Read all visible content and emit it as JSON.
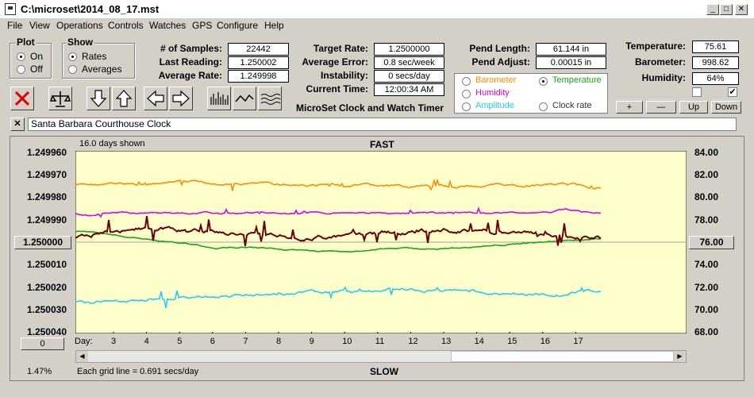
{
  "window": {
    "title": "C:\\microset\\2014_08_17.mst"
  },
  "menu": [
    "File",
    "View",
    "Operations",
    "Controls",
    "Watches",
    "GPS",
    "Configure",
    "Help"
  ],
  "plot_group": {
    "label": "Plot",
    "options": [
      "On",
      "Off"
    ],
    "selected": "On"
  },
  "show_group": {
    "label": "Show",
    "options": [
      "Rates",
      "Averages"
    ],
    "selected": "Rates"
  },
  "stats": {
    "samples_label": "# of Samples:",
    "samples": "22442",
    "last_label": "Last Reading:",
    "last": "1.250002",
    "avg_rate_label": "Average Rate:",
    "avg_rate": "1.249998",
    "target_label": "Target Rate:",
    "target": "1.2500000",
    "avg_err_label": "Average Error:",
    "avg_err": "0.8 sec/week",
    "instab_label": "Instability:",
    "instab": "0 secs/day",
    "time_label": "Current Time:",
    "time": "12:00:34 AM",
    "pend_len_label": "Pend Length:",
    "pend_len": "61.144 in",
    "pend_adj_label": "Pend Adjust:",
    "pend_adj": "0.00015 in",
    "temp_label": "Temperature:",
    "temp": "75.61",
    "baro_label": "Barometer:",
    "baro": "998.62",
    "hum_label": "Humidity:",
    "hum": "64%"
  },
  "app_caption": "MicroSet Clock and Watch Timer",
  "channel_options": [
    "Barometer",
    "Temperature",
    "Humidity",
    "Clock rate",
    "Amplitude"
  ],
  "channel_selected": "Temperature",
  "channel_checks": {
    "left": false,
    "right": true
  },
  "channel_buttons": [
    "+",
    "—",
    "Up",
    "Down"
  ],
  "watch_name": "Santa Barbara Courthouse Clock",
  "plot": {
    "days_shown": "16.0 days shown",
    "fast": "FAST",
    "slow": "SLOW",
    "left_ticks": [
      "1.249960",
      "1.249970",
      "1.249980",
      "1.249990",
      "1.250000",
      "1.250010",
      "1.250020",
      "1.250030",
      "1.250040"
    ],
    "right_ticks": [
      "84.00",
      "82.00",
      "80.00",
      "78.00",
      "76.00",
      "74.00",
      "72.00",
      "70.00",
      "68.00"
    ],
    "left_center_btn": "1.250000",
    "right_center_btn": "76.00",
    "zero_btn": "0",
    "day_label": "Day:",
    "days": [
      "3",
      "4",
      "5",
      "6",
      "7",
      "8",
      "9",
      "10",
      "11",
      "12",
      "13",
      "14",
      "15",
      "16",
      "17"
    ],
    "percent": "1.47%",
    "grid_note": "Each grid line = 0.691 secs/day"
  },
  "colors": {
    "plot_bg": "#ffffcc",
    "orange": "#ff8c00",
    "magenta": "#e000e0",
    "maroon": "#6a0000",
    "green": "#1aa61a",
    "cyan": "#22ccf0"
  }
}
